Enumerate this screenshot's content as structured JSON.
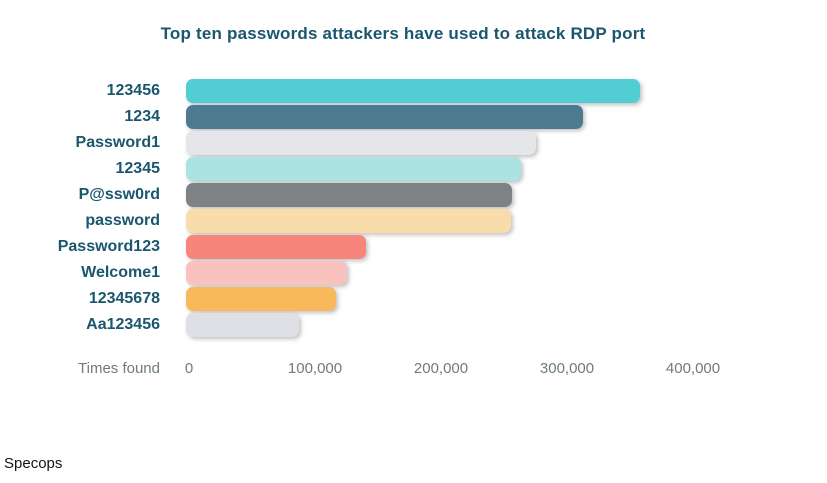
{
  "footer": {
    "brand": "Specops"
  },
  "colors": {
    "background": "#ffffff",
    "title_text": "#1a566e",
    "category_text": "#1a566e",
    "axis_text": "#6f7b80",
    "brand_text": "#141414"
  },
  "chart_data": {
    "type": "bar",
    "orientation": "horizontal",
    "title": "Top ten passwords attackers have used to attack RDP port",
    "xlabel": "Times found",
    "ylabel": "",
    "xlim": [
      0,
      400000
    ],
    "grid": false,
    "legend": null,
    "xtick_values": [
      0,
      100000,
      200000,
      300000,
      400000
    ],
    "xtick_labels": [
      "0",
      "100,000",
      "200,000",
      "300,000",
      "400,000"
    ],
    "categories": [
      "123456",
      "1234",
      "Password1",
      "12345",
      "P@ssw0rd",
      "password",
      "Password123",
      "Welcome1",
      "12345678",
      "Aa123456"
    ],
    "values": [
      360000,
      315000,
      278000,
      266000,
      259000,
      258000,
      143000,
      128000,
      119000,
      90000
    ],
    "bar_colors": [
      "#53cdd4",
      "#4e7a90",
      "#e4e6ea",
      "#aae3df",
      "#7f8285",
      "#f8dcaa",
      "#f8857c",
      "#fac2bf",
      "#f8b95c",
      "#dee0e5"
    ]
  }
}
